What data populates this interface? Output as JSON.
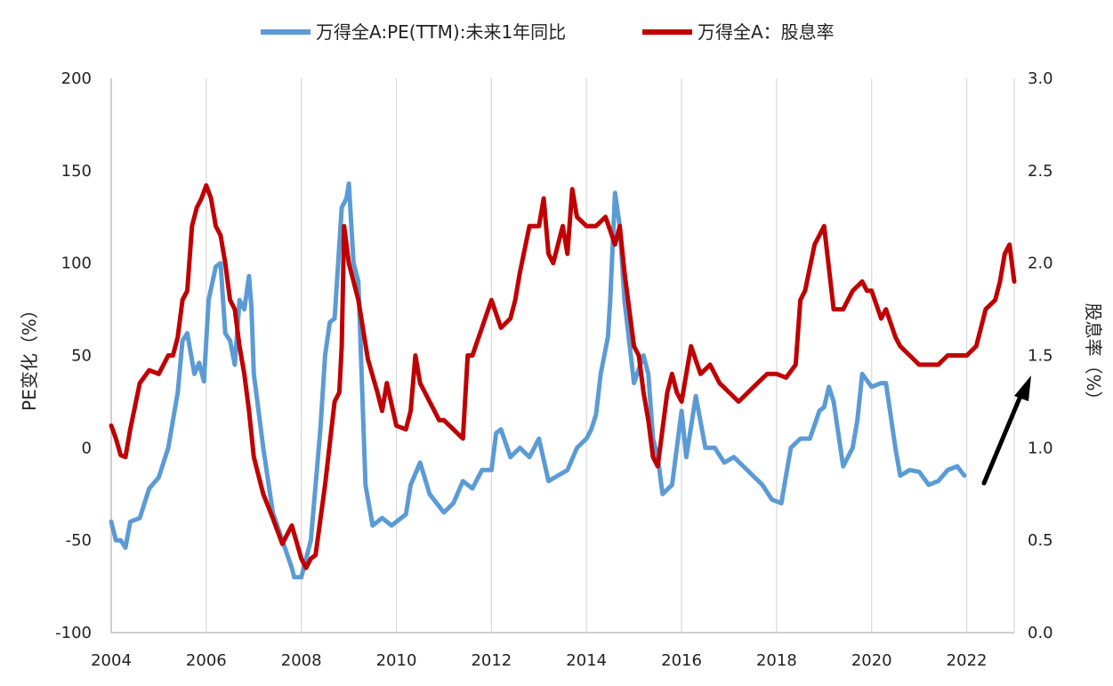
{
  "chart_data": {
    "type": "line",
    "title": "",
    "xlabel": "",
    "ylabel_left": "PE变化（%）",
    "ylabel_right": "股息率（%）",
    "xlim": [
      2004,
      2023
    ],
    "ylim_left": [
      -100,
      200
    ],
    "ylim_right": [
      0.0,
      3.0
    ],
    "x_ticks": [
      "2004",
      "2006",
      "2008",
      "2010",
      "2012",
      "2014",
      "2016",
      "2018",
      "2020",
      "2022"
    ],
    "y_left_ticks": [
      "-100",
      "-50",
      "0",
      "50",
      "100",
      "150",
      "200"
    ],
    "y_right_ticks": [
      "0.0",
      "0.5",
      "1.0",
      "1.5",
      "2.0",
      "2.5",
      "3.0"
    ],
    "grid": "vertical",
    "legend_position": "top-center",
    "series": [
      {
        "name": "万得全A:PE(TTM):未来1年同比",
        "axis": "left",
        "color": "#5B9BD5",
        "x": [
          2004.0,
          2004.1,
          2004.2,
          2004.3,
          2004.4,
          2004.6,
          2004.8,
          2005.0,
          2005.2,
          2005.4,
          2005.5,
          2005.6,
          2005.75,
          2005.85,
          2005.95,
          2006.05,
          2006.2,
          2006.3,
          2006.4,
          2006.5,
          2006.6,
          2006.7,
          2006.8,
          2006.9,
          2006.95,
          2007.0,
          2007.2,
          2007.4,
          2007.6,
          2007.8,
          2007.85,
          2008.0,
          2008.2,
          2008.4,
          2008.5,
          2008.6,
          2008.7,
          2008.85,
          2008.95,
          2009.0,
          2009.1,
          2009.2,
          2009.35,
          2009.5,
          2009.7,
          2009.9,
          2010.0,
          2010.2,
          2010.3,
          2010.5,
          2010.7,
          2011.0,
          2011.2,
          2011.4,
          2011.6,
          2011.8,
          2012.0,
          2012.1,
          2012.2,
          2012.4,
          2012.6,
          2012.8,
          2013.0,
          2013.2,
          2013.4,
          2013.6,
          2013.8,
          2014.0,
          2014.1,
          2014.2,
          2014.3,
          2014.45,
          2014.5,
          2014.6,
          2014.7,
          2014.8,
          2015.0,
          2015.2,
          2015.3,
          2015.4,
          2015.5,
          2015.6,
          2015.8,
          2016.0,
          2016.1,
          2016.3,
          2016.5,
          2016.7,
          2016.9,
          2017.1,
          2017.3,
          2017.5,
          2017.7,
          2017.9,
          2018.1,
          2018.3,
          2018.5,
          2018.7,
          2018.9,
          2019.0,
          2019.1,
          2019.2,
          2019.4,
          2019.6,
          2019.7,
          2019.8,
          2020.0,
          2020.2,
          2020.3,
          2020.5,
          2020.6,
          2020.8,
          2021.0,
          2021.2,
          2021.4,
          2021.6,
          2021.8,
          2021.95
        ],
        "values": [
          -40,
          -50,
          -50,
          -54,
          -40,
          -38,
          -22,
          -16,
          0,
          30,
          58,
          62,
          40,
          46,
          36,
          80,
          98,
          100,
          62,
          58,
          45,
          80,
          75,
          93,
          76,
          40,
          0,
          -35,
          -50,
          -65,
          -70,
          -70,
          -50,
          10,
          50,
          68,
          70,
          130,
          135,
          143,
          100,
          90,
          -20,
          -42,
          -38,
          -42,
          -40,
          -36,
          -20,
          -8,
          -25,
          -35,
          -30,
          -18,
          -22,
          -12,
          -12,
          8,
          10,
          -5,
          0,
          -5,
          5,
          -18,
          -15,
          -12,
          0,
          5,
          10,
          18,
          40,
          60,
          80,
          138,
          120,
          80,
          35,
          50,
          40,
          5,
          -5,
          -25,
          -20,
          20,
          -5,
          28,
          0,
          0,
          -8,
          -5,
          -10,
          -15,
          -20,
          -28,
          -30,
          0,
          5,
          5,
          20,
          22,
          33,
          25,
          -10,
          0,
          15,
          40,
          33,
          35,
          35,
          0,
          -15,
          -12,
          -13,
          -20,
          -18,
          -12,
          -10,
          -15
        ]
      },
      {
        "name": "万得全A：股息率",
        "axis": "right",
        "color": "#C00000",
        "x": [
          2004.0,
          2004.1,
          2004.2,
          2004.3,
          2004.4,
          2004.6,
          2004.8,
          2005.0,
          2005.1,
          2005.2,
          2005.3,
          2005.4,
          2005.5,
          2005.6,
          2005.7,
          2005.8,
          2005.9,
          2006.0,
          2006.1,
          2006.2,
          2006.3,
          2006.4,
          2006.5,
          2006.6,
          2006.7,
          2006.8,
          2006.9,
          2007.0,
          2007.2,
          2007.4,
          2007.6,
          2007.8,
          2008.0,
          2008.1,
          2008.2,
          2008.3,
          2008.5,
          2008.7,
          2008.8,
          2008.85,
          2008.9,
          2009.0,
          2009.2,
          2009.4,
          2009.6,
          2009.7,
          2009.8,
          2010.0,
          2010.2,
          2010.3,
          2010.4,
          2010.5,
          2010.7,
          2010.9,
          2011.0,
          2011.2,
          2011.4,
          2011.5,
          2011.6,
          2011.8,
          2012.0,
          2012.2,
          2012.4,
          2012.5,
          2012.6,
          2012.8,
          2013.0,
          2013.1,
          2013.2,
          2013.3,
          2013.5,
          2013.6,
          2013.7,
          2013.8,
          2014.0,
          2014.2,
          2014.4,
          2014.6,
          2014.7,
          2014.8,
          2015.0,
          2015.1,
          2015.2,
          2015.3,
          2015.4,
          2015.5,
          2015.7,
          2015.8,
          2015.9,
          2016.0,
          2016.2,
          2016.4,
          2016.6,
          2016.8,
          2017.0,
          2017.2,
          2017.4,
          2017.6,
          2017.8,
          2018.0,
          2018.2,
          2018.4,
          2018.5,
          2018.6,
          2018.8,
          2018.9,
          2019.0,
          2019.2,
          2019.4,
          2019.6,
          2019.8,
          2019.9,
          2020.0,
          2020.2,
          2020.3,
          2020.5,
          2020.6,
          2020.8,
          2021.0,
          2021.2,
          2021.4,
          2021.6,
          2021.8,
          2022.0,
          2022.2,
          2022.4,
          2022.6,
          2022.7,
          2022.8,
          2022.9,
          2023.0
        ],
        "values": [
          1.12,
          1.05,
          0.96,
          0.95,
          1.1,
          1.35,
          1.42,
          1.4,
          1.45,
          1.5,
          1.5,
          1.6,
          1.8,
          1.85,
          2.2,
          2.3,
          2.35,
          2.42,
          2.35,
          2.2,
          2.15,
          2.0,
          1.8,
          1.75,
          1.55,
          1.4,
          1.2,
          0.95,
          0.75,
          0.62,
          0.48,
          0.58,
          0.4,
          0.35,
          0.4,
          0.42,
          0.8,
          1.25,
          1.3,
          1.55,
          2.2,
          2.0,
          1.8,
          1.48,
          1.3,
          1.2,
          1.35,
          1.12,
          1.1,
          1.2,
          1.5,
          1.35,
          1.25,
          1.15,
          1.15,
          1.1,
          1.05,
          1.5,
          1.5,
          1.65,
          1.8,
          1.65,
          1.7,
          1.8,
          1.95,
          2.2,
          2.2,
          2.35,
          2.05,
          2.0,
          2.2,
          2.05,
          2.4,
          2.25,
          2.2,
          2.2,
          2.25,
          2.1,
          2.2,
          1.95,
          1.55,
          1.5,
          1.3,
          1.15,
          0.95,
          0.9,
          1.3,
          1.4,
          1.3,
          1.25,
          1.55,
          1.4,
          1.45,
          1.35,
          1.3,
          1.25,
          1.3,
          1.35,
          1.4,
          1.4,
          1.38,
          1.45,
          1.8,
          1.85,
          2.1,
          2.15,
          2.2,
          1.75,
          1.75,
          1.85,
          1.9,
          1.85,
          1.85,
          1.7,
          1.75,
          1.6,
          1.55,
          1.5,
          1.45,
          1.45,
          1.45,
          1.5,
          1.5,
          1.5,
          1.55,
          1.75,
          1.8,
          1.9,
          2.05,
          2.1,
          1.9
        ]
      }
    ]
  }
}
